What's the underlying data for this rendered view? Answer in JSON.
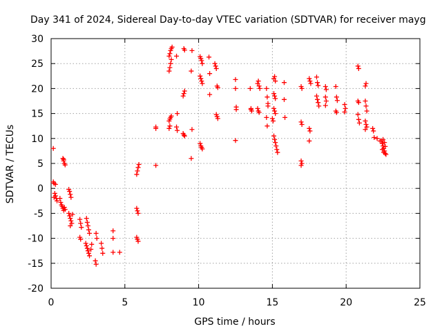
{
  "chart_data": {
    "type": "scatter",
    "title": "Day 341 of 2024, Sidereal Day-to-day VTEC variation (SDTVAR) for receiver mayg",
    "xlabel": "GPS time / hours",
    "ylabel": "SDTVAR / TECUs",
    "xlim": [
      0,
      25
    ],
    "ylim": [
      -20,
      30
    ],
    "xticks": [
      "0",
      "5",
      "10",
      "15",
      "20",
      "25"
    ],
    "yticks": [
      "-20",
      "-15",
      "-10",
      "-5",
      "0",
      "5",
      "10",
      "15",
      "20",
      "25",
      "30"
    ],
    "grid": true,
    "marker": "+",
    "color": "#ff0000",
    "series": [
      {
        "name": "SDTVAR",
        "points": [
          [
            0.15,
            8.0
          ],
          [
            0.15,
            1.3
          ],
          [
            0.2,
            1.0
          ],
          [
            0.3,
            0.8
          ],
          [
            0.25,
            -1.0
          ],
          [
            0.3,
            -1.5
          ],
          [
            0.35,
            -2.0
          ],
          [
            0.4,
            -2.5
          ],
          [
            0.2,
            -1.8
          ],
          [
            0.6,
            -2.0
          ],
          [
            0.65,
            -2.8
          ],
          [
            0.7,
            -3.3
          ],
          [
            0.75,
            -3.6
          ],
          [
            0.8,
            -4.0
          ],
          [
            0.85,
            -4.4
          ],
          [
            0.9,
            -3.8
          ],
          [
            0.95,
            -4.2
          ],
          [
            0.8,
            6.0
          ],
          [
            0.85,
            5.5
          ],
          [
            0.9,
            5.0
          ],
          [
            0.95,
            4.7
          ],
          [
            0.85,
            5.8
          ],
          [
            1.2,
            -0.2
          ],
          [
            1.25,
            -0.6
          ],
          [
            1.3,
            -1.2
          ],
          [
            1.35,
            -1.8
          ],
          [
            1.2,
            -5.0
          ],
          [
            1.25,
            -5.5
          ],
          [
            1.3,
            -6.0
          ],
          [
            1.35,
            -6.5
          ],
          [
            1.4,
            -7.0
          ],
          [
            1.3,
            -7.5
          ],
          [
            1.45,
            -5.2
          ],
          [
            1.95,
            -6.2
          ],
          [
            2.0,
            -7.0
          ],
          [
            2.05,
            -7.8
          ],
          [
            1.95,
            -9.8
          ],
          [
            2.0,
            -10.2
          ],
          [
            2.4,
            -6.0
          ],
          [
            2.45,
            -6.8
          ],
          [
            2.5,
            -7.5
          ],
          [
            2.55,
            -8.3
          ],
          [
            2.6,
            -9.0
          ],
          [
            2.35,
            -11.0
          ],
          [
            2.4,
            -11.5
          ],
          [
            2.45,
            -12.0
          ],
          [
            2.5,
            -12.5
          ],
          [
            2.55,
            -13.0
          ],
          [
            2.6,
            -13.5
          ],
          [
            2.7,
            -12.2
          ],
          [
            2.75,
            -11.2
          ],
          [
            3.05,
            -9.0
          ],
          [
            3.1,
            -10.0
          ],
          [
            3.0,
            -14.5
          ],
          [
            3.05,
            -15.2
          ],
          [
            3.4,
            -11.0
          ],
          [
            3.45,
            -12.0
          ],
          [
            3.5,
            -13.0
          ],
          [
            4.2,
            -8.5
          ],
          [
            4.2,
            -10.0
          ],
          [
            4.2,
            -12.8
          ],
          [
            4.65,
            -12.8
          ],
          [
            5.8,
            2.8
          ],
          [
            5.85,
            3.5
          ],
          [
            5.9,
            4.2
          ],
          [
            5.95,
            4.8
          ],
          [
            5.8,
            -4.0
          ],
          [
            5.85,
            -4.5
          ],
          [
            5.9,
            -5.0
          ],
          [
            5.8,
            -9.8
          ],
          [
            5.85,
            -10.2
          ],
          [
            5.9,
            -10.6
          ],
          [
            7.1,
            4.6
          ],
          [
            7.1,
            12.0
          ],
          [
            7.1,
            12.3
          ],
          [
            8.0,
            12.0
          ],
          [
            8.05,
            12.5
          ],
          [
            8.0,
            13.5
          ],
          [
            8.05,
            13.9
          ],
          [
            8.1,
            14.2
          ],
          [
            8.15,
            14.5
          ],
          [
            8.0,
            23.5
          ],
          [
            8.05,
            24.2
          ],
          [
            8.1,
            25.0
          ],
          [
            8.15,
            25.8
          ],
          [
            8.0,
            26.5
          ],
          [
            8.05,
            27.0
          ],
          [
            8.1,
            27.6
          ],
          [
            8.15,
            28.0
          ],
          [
            8.2,
            28.3
          ],
          [
            8.5,
            26.5
          ],
          [
            8.55,
            15.0
          ],
          [
            8.5,
            12.3
          ],
          [
            8.55,
            11.6
          ],
          [
            8.95,
            18.5
          ],
          [
            9.0,
            19.0
          ],
          [
            9.05,
            19.5
          ],
          [
            8.95,
            11.0
          ],
          [
            9.0,
            10.7
          ],
          [
            9.05,
            10.5
          ],
          [
            9.0,
            28.0
          ],
          [
            9.05,
            27.7
          ],
          [
            9.55,
            27.6
          ],
          [
            9.5,
            23.5
          ],
          [
            9.55,
            11.8
          ],
          [
            9.5,
            6.0
          ],
          [
            10.1,
            26.4
          ],
          [
            10.15,
            26.0
          ],
          [
            10.2,
            25.6
          ],
          [
            10.25,
            25.0
          ],
          [
            10.1,
            22.5
          ],
          [
            10.15,
            22.0
          ],
          [
            10.2,
            21.5
          ],
          [
            10.25,
            21.0
          ],
          [
            10.1,
            9.0
          ],
          [
            10.15,
            8.5
          ],
          [
            10.2,
            8.2
          ],
          [
            10.25,
            7.9
          ],
          [
            10.7,
            26.3
          ],
          [
            10.75,
            23.0
          ],
          [
            10.75,
            18.8
          ],
          [
            11.1,
            25.0
          ],
          [
            11.15,
            24.5
          ],
          [
            11.2,
            24.0
          ],
          [
            11.25,
            20.5
          ],
          [
            11.3,
            20.2
          ],
          [
            11.2,
            14.8
          ],
          [
            11.25,
            14.4
          ],
          [
            11.3,
            14.0
          ],
          [
            12.5,
            21.8
          ],
          [
            12.5,
            20.0
          ],
          [
            12.55,
            16.3
          ],
          [
            12.55,
            15.8
          ],
          [
            12.5,
            9.6
          ],
          [
            13.5,
            20.0
          ],
          [
            13.55,
            15.8
          ],
          [
            13.6,
            15.5
          ],
          [
            13.55,
            16.0
          ],
          [
            14.0,
            21.0
          ],
          [
            14.05,
            21.5
          ],
          [
            14.1,
            20.5
          ],
          [
            14.15,
            20.0
          ],
          [
            14.0,
            16.0
          ],
          [
            14.05,
            15.5
          ],
          [
            14.1,
            15.2
          ],
          [
            14.6,
            20.0
          ],
          [
            14.65,
            18.3
          ],
          [
            14.7,
            17.0
          ],
          [
            14.6,
            14.2
          ],
          [
            14.65,
            12.5
          ],
          [
            14.7,
            16.5
          ],
          [
            15.1,
            22.0
          ],
          [
            15.15,
            22.4
          ],
          [
            15.2,
            21.5
          ],
          [
            15.1,
            19.0
          ],
          [
            15.15,
            18.5
          ],
          [
            15.2,
            18.0
          ],
          [
            15.1,
            16.0
          ],
          [
            15.15,
            15.5
          ],
          [
            15.2,
            15.0
          ],
          [
            15.0,
            14.0
          ],
          [
            15.05,
            13.5
          ],
          [
            15.1,
            10.5
          ],
          [
            15.15,
            9.8
          ],
          [
            15.2,
            9.2
          ],
          [
            15.25,
            8.5
          ],
          [
            15.3,
            7.8
          ],
          [
            15.35,
            7.2
          ],
          [
            15.8,
            21.2
          ],
          [
            15.8,
            17.8
          ],
          [
            15.85,
            14.2
          ],
          [
            16.95,
            20.4
          ],
          [
            17.0,
            20.0
          ],
          [
            16.95,
            13.3
          ],
          [
            17.0,
            12.8
          ],
          [
            16.95,
            5.5
          ],
          [
            17.0,
            5.0
          ],
          [
            16.95,
            4.6
          ],
          [
            17.5,
            22.0
          ],
          [
            17.55,
            21.5
          ],
          [
            17.6,
            21.0
          ],
          [
            17.5,
            12.0
          ],
          [
            17.55,
            11.5
          ],
          [
            17.5,
            9.5
          ],
          [
            18.0,
            22.3
          ],
          [
            18.05,
            21.2
          ],
          [
            18.1,
            20.6
          ],
          [
            18.0,
            18.5
          ],
          [
            18.05,
            17.8
          ],
          [
            18.1,
            17.2
          ],
          [
            18.15,
            16.5
          ],
          [
            18.6,
            20.4
          ],
          [
            18.65,
            19.8
          ],
          [
            18.6,
            18.3
          ],
          [
            18.65,
            17.5
          ],
          [
            18.6,
            16.6
          ],
          [
            19.3,
            20.4
          ],
          [
            19.35,
            18.3
          ],
          [
            19.4,
            17.6
          ],
          [
            19.3,
            15.5
          ],
          [
            19.35,
            15.2
          ],
          [
            19.9,
            16.8
          ],
          [
            19.95,
            16.0
          ],
          [
            19.9,
            15.3
          ],
          [
            20.8,
            24.5
          ],
          [
            20.85,
            24.0
          ],
          [
            20.8,
            17.5
          ],
          [
            20.85,
            17.2
          ],
          [
            20.8,
            14.8
          ],
          [
            20.85,
            13.8
          ],
          [
            20.9,
            13.1
          ],
          [
            21.3,
            20.5
          ],
          [
            21.35,
            21.0
          ],
          [
            21.3,
            17.5
          ],
          [
            21.35,
            16.5
          ],
          [
            21.4,
            15.5
          ],
          [
            21.3,
            13.5
          ],
          [
            21.35,
            12.8
          ],
          [
            21.4,
            12.3
          ],
          [
            21.3,
            11.8
          ],
          [
            21.8,
            12.0
          ],
          [
            21.85,
            11.5
          ],
          [
            21.9,
            10.2
          ],
          [
            22.1,
            10.0
          ],
          [
            22.3,
            9.5
          ],
          [
            22.4,
            9.5
          ],
          [
            22.45,
            9.0
          ],
          [
            22.5,
            8.5
          ],
          [
            22.55,
            8.0
          ],
          [
            22.6,
            7.5
          ],
          [
            22.65,
            7.0
          ],
          [
            22.5,
            9.8
          ],
          [
            22.6,
            9.2
          ],
          [
            22.45,
            7.8
          ],
          [
            22.55,
            7.2
          ],
          [
            22.65,
            8.4
          ],
          [
            22.7,
            6.8
          ]
        ]
      }
    ]
  }
}
